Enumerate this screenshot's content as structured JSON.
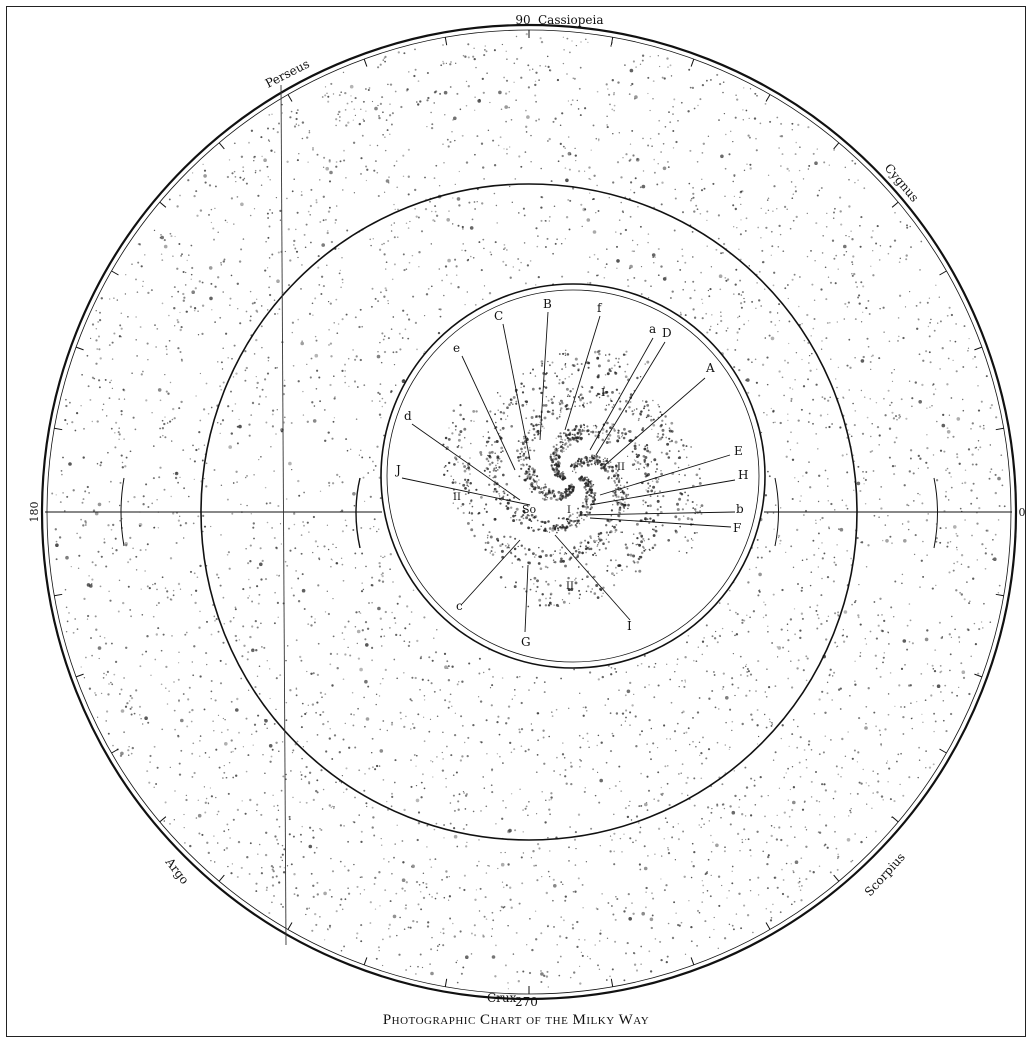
{
  "chart": {
    "caption": "Photographic Chart of the Milky Way",
    "colors": {
      "ink": "#111111",
      "paper": "#ffffff"
    }
  },
  "outer_ring": {
    "labels": [
      {
        "text": "90",
        "key": "n90"
      },
      {
        "text": "Cassiopeia",
        "key": "cassiopeia"
      },
      {
        "text": "Perseus",
        "key": "perseus"
      },
      {
        "text": "Cygnus",
        "key": "cygnus"
      },
      {
        "text": "180",
        "key": "w180"
      },
      {
        "text": "0",
        "key": "e0"
      },
      {
        "text": "Argo",
        "key": "argo"
      },
      {
        "text": "Scorpius",
        "key": "scorpius"
      },
      {
        "text": "Crux",
        "key": "crux"
      },
      {
        "text": "270",
        "key": "s270"
      }
    ]
  },
  "spiral_labels": [
    "B",
    "f",
    "C",
    "a",
    "D",
    "e",
    "A",
    "I",
    "d",
    "E",
    "II",
    "J",
    "H",
    "II",
    "So",
    "I",
    "b",
    "F",
    "c",
    "II",
    "I",
    "G"
  ]
}
